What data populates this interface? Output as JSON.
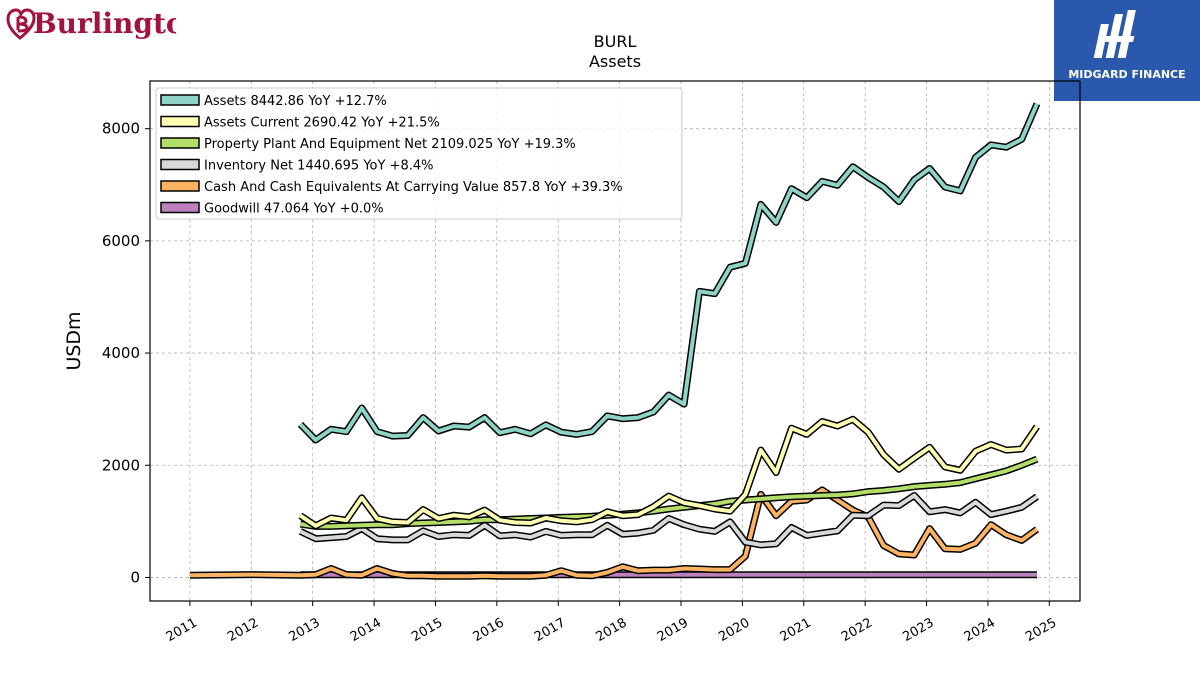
{
  "brand": {
    "left_logo_text": "Burlington",
    "left_logo_color": "#a4123f",
    "right_logo_text": "MIDGARD FINANCE",
    "right_logo_bg": "#2a58ad"
  },
  "chart_data": {
    "type": "line",
    "title": "BURL",
    "subtitle": "Assets",
    "xlabel": "",
    "ylabel": "USDm",
    "xlim": [
      2010.35,
      2025.5
    ],
    "ylim": [
      -420,
      8850
    ],
    "x_ticks": [
      2011,
      2012,
      2013,
      2014,
      2015,
      2016,
      2017,
      2018,
      2019,
      2020,
      2021,
      2022,
      2023,
      2024,
      2025
    ],
    "y_ticks": [
      0,
      2000,
      4000,
      6000,
      8000
    ],
    "grid": true,
    "legend_position": "top-left",
    "series": [
      {
        "name": "Assets  8442.86 YoY +12.7%",
        "color": "#8dd3c7",
        "points": [
          [
            2012.8,
            2730
          ],
          [
            2013.05,
            2450
          ],
          [
            2013.3,
            2640
          ],
          [
            2013.55,
            2600
          ],
          [
            2013.8,
            3020
          ],
          [
            2014.05,
            2600
          ],
          [
            2014.3,
            2520
          ],
          [
            2014.55,
            2530
          ],
          [
            2014.8,
            2850
          ],
          [
            2015.05,
            2610
          ],
          [
            2015.3,
            2700
          ],
          [
            2015.55,
            2680
          ],
          [
            2015.8,
            2850
          ],
          [
            2016.05,
            2580
          ],
          [
            2016.3,
            2640
          ],
          [
            2016.55,
            2560
          ],
          [
            2016.8,
            2720
          ],
          [
            2017.05,
            2590
          ],
          [
            2017.3,
            2550
          ],
          [
            2017.55,
            2600
          ],
          [
            2017.8,
            2880
          ],
          [
            2018.05,
            2830
          ],
          [
            2018.3,
            2850
          ],
          [
            2018.55,
            2950
          ],
          [
            2018.8,
            3250
          ],
          [
            2019.05,
            3090
          ],
          [
            2019.3,
            5100
          ],
          [
            2019.55,
            5060
          ],
          [
            2019.8,
            5530
          ],
          [
            2020.05,
            5600
          ],
          [
            2020.3,
            6650
          ],
          [
            2020.55,
            6330
          ],
          [
            2020.8,
            6930
          ],
          [
            2021.05,
            6770
          ],
          [
            2021.3,
            7060
          ],
          [
            2021.55,
            6990
          ],
          [
            2021.8,
            7320
          ],
          [
            2022.05,
            7130
          ],
          [
            2022.3,
            6960
          ],
          [
            2022.55,
            6700
          ],
          [
            2022.8,
            7090
          ],
          [
            2023.05,
            7290
          ],
          [
            2023.3,
            6960
          ],
          [
            2023.55,
            6890
          ],
          [
            2023.8,
            7490
          ],
          [
            2024.05,
            7710
          ],
          [
            2024.3,
            7670
          ],
          [
            2024.55,
            7810
          ],
          [
            2024.8,
            8443
          ]
        ]
      },
      {
        "name": "Assets Current  2690.42 YoY +21.5%",
        "color": "#ffffb3",
        "points": [
          [
            2012.8,
            1100
          ],
          [
            2013.05,
            920
          ],
          [
            2013.3,
            1060
          ],
          [
            2013.55,
            1020
          ],
          [
            2013.8,
            1420
          ],
          [
            2014.05,
            1050
          ],
          [
            2014.3,
            990
          ],
          [
            2014.55,
            980
          ],
          [
            2014.8,
            1210
          ],
          [
            2015.05,
            1050
          ],
          [
            2015.3,
            1110
          ],
          [
            2015.55,
            1080
          ],
          [
            2015.8,
            1200
          ],
          [
            2016.05,
            1020
          ],
          [
            2016.3,
            980
          ],
          [
            2016.55,
            970
          ],
          [
            2016.8,
            1060
          ],
          [
            2017.05,
            1010
          ],
          [
            2017.3,
            990
          ],
          [
            2017.55,
            1030
          ],
          [
            2017.8,
            1170
          ],
          [
            2018.05,
            1100
          ],
          [
            2018.3,
            1120
          ],
          [
            2018.55,
            1260
          ],
          [
            2018.8,
            1450
          ],
          [
            2019.05,
            1330
          ],
          [
            2019.3,
            1280
          ],
          [
            2019.55,
            1220
          ],
          [
            2019.8,
            1180
          ],
          [
            2020.05,
            1480
          ],
          [
            2020.3,
            2270
          ],
          [
            2020.55,
            1870
          ],
          [
            2020.8,
            2660
          ],
          [
            2021.05,
            2550
          ],
          [
            2021.3,
            2780
          ],
          [
            2021.55,
            2700
          ],
          [
            2021.8,
            2820
          ],
          [
            2022.05,
            2590
          ],
          [
            2022.3,
            2190
          ],
          [
            2022.55,
            1930
          ],
          [
            2022.8,
            2130
          ],
          [
            2023.05,
            2320
          ],
          [
            2023.3,
            1970
          ],
          [
            2023.55,
            1910
          ],
          [
            2023.8,
            2250
          ],
          [
            2024.05,
            2370
          ],
          [
            2024.3,
            2270
          ],
          [
            2024.55,
            2290
          ],
          [
            2024.8,
            2690
          ]
        ]
      },
      {
        "name": "Property Plant And Equipment Net  2109.025 YoY +19.3%",
        "color": "#b3de69",
        "points": [
          [
            2012.8,
            950
          ],
          [
            2013.05,
            910
          ],
          [
            2013.3,
            910
          ],
          [
            2013.55,
            920
          ],
          [
            2013.8,
            930
          ],
          [
            2014.05,
            940
          ],
          [
            2014.3,
            940
          ],
          [
            2014.55,
            960
          ],
          [
            2014.8,
            970
          ],
          [
            2015.05,
            980
          ],
          [
            2015.3,
            990
          ],
          [
            2015.55,
            1000
          ],
          [
            2015.8,
            1030
          ],
          [
            2016.05,
            1030
          ],
          [
            2016.3,
            1040
          ],
          [
            2016.55,
            1050
          ],
          [
            2016.8,
            1060
          ],
          [
            2017.05,
            1070
          ],
          [
            2017.3,
            1080
          ],
          [
            2017.55,
            1090
          ],
          [
            2017.8,
            1110
          ],
          [
            2018.05,
            1130
          ],
          [
            2018.3,
            1150
          ],
          [
            2018.55,
            1180
          ],
          [
            2018.8,
            1220
          ],
          [
            2019.05,
            1250
          ],
          [
            2019.3,
            1280
          ],
          [
            2019.55,
            1310
          ],
          [
            2019.8,
            1360
          ],
          [
            2020.05,
            1380
          ],
          [
            2020.3,
            1400
          ],
          [
            2020.55,
            1420
          ],
          [
            2020.8,
            1440
          ],
          [
            2021.05,
            1450
          ],
          [
            2021.3,
            1460
          ],
          [
            2021.55,
            1470
          ],
          [
            2021.8,
            1490
          ],
          [
            2022.05,
            1530
          ],
          [
            2022.3,
            1550
          ],
          [
            2022.55,
            1580
          ],
          [
            2022.8,
            1620
          ],
          [
            2023.05,
            1640
          ],
          [
            2023.3,
            1660
          ],
          [
            2023.55,
            1690
          ],
          [
            2023.8,
            1760
          ],
          [
            2024.05,
            1830
          ],
          [
            2024.3,
            1900
          ],
          [
            2024.55,
            2000
          ],
          [
            2024.8,
            2109
          ]
        ]
      },
      {
        "name": "Inventory Net  1440.695 YoY +8.4%",
        "color": "#d9d9d9",
        "points": [
          [
            2012.8,
            820
          ],
          [
            2013.05,
            690
          ],
          [
            2013.3,
            710
          ],
          [
            2013.55,
            730
          ],
          [
            2013.8,
            870
          ],
          [
            2014.05,
            690
          ],
          [
            2014.3,
            670
          ],
          [
            2014.55,
            670
          ],
          [
            2014.8,
            830
          ],
          [
            2015.05,
            730
          ],
          [
            2015.3,
            760
          ],
          [
            2015.55,
            750
          ],
          [
            2015.8,
            930
          ],
          [
            2016.05,
            740
          ],
          [
            2016.3,
            760
          ],
          [
            2016.55,
            720
          ],
          [
            2016.8,
            820
          ],
          [
            2017.05,
            750
          ],
          [
            2017.3,
            760
          ],
          [
            2017.55,
            760
          ],
          [
            2017.8,
            930
          ],
          [
            2018.05,
            770
          ],
          [
            2018.3,
            790
          ],
          [
            2018.55,
            840
          ],
          [
            2018.8,
            1050
          ],
          [
            2019.05,
            940
          ],
          [
            2019.3,
            860
          ],
          [
            2019.55,
            820
          ],
          [
            2019.8,
            990
          ],
          [
            2020.05,
            630
          ],
          [
            2020.3,
            580
          ],
          [
            2020.55,
            600
          ],
          [
            2020.8,
            890
          ],
          [
            2021.05,
            750
          ],
          [
            2021.3,
            790
          ],
          [
            2021.55,
            830
          ],
          [
            2021.8,
            1110
          ],
          [
            2022.05,
            1100
          ],
          [
            2022.3,
            1290
          ],
          [
            2022.55,
            1280
          ],
          [
            2022.8,
            1460
          ],
          [
            2023.05,
            1170
          ],
          [
            2023.3,
            1210
          ],
          [
            2023.55,
            1150
          ],
          [
            2023.8,
            1340
          ],
          [
            2024.05,
            1120
          ],
          [
            2024.3,
            1180
          ],
          [
            2024.55,
            1250
          ],
          [
            2024.8,
            1441
          ]
        ]
      },
      {
        "name": "Cash And Cash Equivalents At Carrying Value  857.8 YoY +39.3%",
        "color": "#fdb462",
        "points": [
          [
            2011,
            40
          ],
          [
            2012,
            50
          ],
          [
            2012.8,
            40
          ],
          [
            2013.05,
            50
          ],
          [
            2013.3,
            160
          ],
          [
            2013.55,
            50
          ],
          [
            2013.8,
            40
          ],
          [
            2014.05,
            160
          ],
          [
            2014.3,
            70
          ],
          [
            2014.55,
            30
          ],
          [
            2014.8,
            30
          ],
          [
            2015.05,
            20
          ],
          [
            2015.3,
            20
          ],
          [
            2015.55,
            20
          ],
          [
            2015.8,
            30
          ],
          [
            2016.05,
            20
          ],
          [
            2016.3,
            20
          ],
          [
            2016.55,
            20
          ],
          [
            2016.8,
            40
          ],
          [
            2017.05,
            120
          ],
          [
            2017.3,
            40
          ],
          [
            2017.55,
            30
          ],
          [
            2017.8,
            90
          ],
          [
            2018.05,
            190
          ],
          [
            2018.3,
            120
          ],
          [
            2018.55,
            130
          ],
          [
            2018.8,
            130
          ],
          [
            2019.05,
            160
          ],
          [
            2019.3,
            150
          ],
          [
            2019.55,
            140
          ],
          [
            2019.8,
            140
          ],
          [
            2020.05,
            380
          ],
          [
            2020.3,
            1480
          ],
          [
            2020.55,
            1100
          ],
          [
            2020.8,
            1360
          ],
          [
            2021.05,
            1380
          ],
          [
            2021.3,
            1560
          ],
          [
            2021.55,
            1380
          ],
          [
            2021.8,
            1200
          ],
          [
            2022.05,
            1080
          ],
          [
            2022.3,
            570
          ],
          [
            2022.55,
            420
          ],
          [
            2022.8,
            400
          ],
          [
            2023.05,
            870
          ],
          [
            2023.3,
            510
          ],
          [
            2023.55,
            500
          ],
          [
            2023.8,
            610
          ],
          [
            2024.05,
            940
          ],
          [
            2024.3,
            760
          ],
          [
            2024.55,
            660
          ],
          [
            2024.8,
            858
          ]
        ]
      },
      {
        "name": "Goodwill  47.064 YoY +0.0%",
        "color": "#bc80bd",
        "points": [
          [
            2012.8,
            47
          ],
          [
            2024.8,
            47
          ]
        ]
      }
    ]
  }
}
